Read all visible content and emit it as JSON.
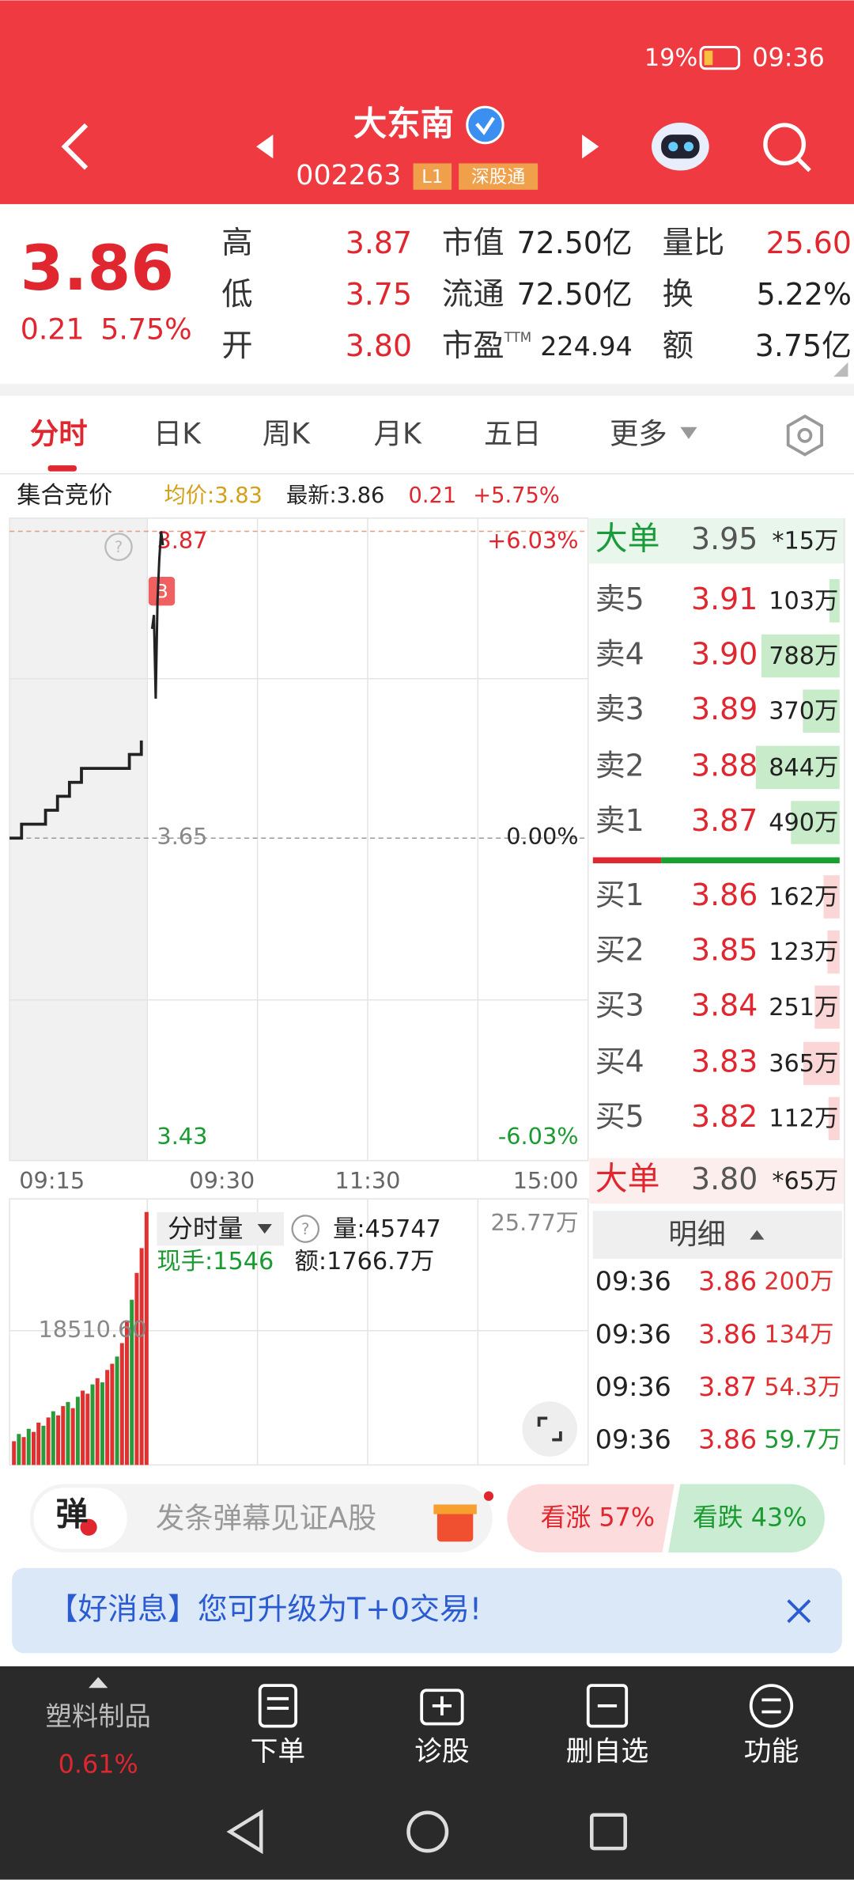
{
  "status_bar": {
    "battery": "19%",
    "time": "09:36"
  },
  "header": {
    "name": "大东南",
    "code": "002263",
    "badge_level": "L1",
    "badge_connect": "深股通"
  },
  "quote": {
    "price": "3.86",
    "change": "0.21",
    "change_pct": "5.75%",
    "col1": [
      {
        "label": "高",
        "value": "3.87"
      },
      {
        "label": "低",
        "value": "3.75"
      },
      {
        "label": "开",
        "value": "3.80"
      }
    ],
    "col2": [
      {
        "label": "市值",
        "value": "72.50亿"
      },
      {
        "label": "流通",
        "value": "72.50亿"
      },
      {
        "label": "市盈",
        "sup": "TTM",
        "value": "224.94"
      }
    ],
    "col3": [
      {
        "label": "量比",
        "value": "25.60"
      },
      {
        "label": "换",
        "value": "5.22%"
      },
      {
        "label": "额",
        "value": "3.75亿"
      }
    ]
  },
  "tabs": [
    "分时",
    "日K",
    "周K",
    "月K",
    "五日",
    "更多"
  ],
  "info_bar": {
    "label": "集合竞价",
    "avg": "均价:3.83",
    "latest": "最新:3.86",
    "change": "0.21",
    "change_pct": "+5.75%"
  },
  "price_chart": {
    "ylim": [
      3.43,
      3.87
    ],
    "yticks": [
      3.43,
      3.65,
      3.87
    ],
    "pct_labels": [
      "-6.03%",
      "0.00%",
      "+6.03%"
    ],
    "times": [
      "09:15",
      "09:30",
      "11:30",
      "15:00"
    ],
    "auction": [
      3.65,
      3.66,
      3.66,
      3.67,
      3.68,
      3.69,
      3.7,
      3.7,
      3.7,
      3.7,
      3.71,
      3.72
    ],
    "prices": [
      3.8,
      3.81,
      3.75,
      3.82,
      3.85,
      3.87,
      3.86
    ]
  },
  "volume_chart": {
    "title": "分时量",
    "volume": "量:45747",
    "hand": "现手:1546",
    "amount": "额:1766.7万",
    "max_label": "25.77万",
    "mid_label": "18510.60",
    "ylim": [
      0,
      257700
    ],
    "values": [
      23000,
      30000,
      27000,
      35000,
      32000,
      41000,
      38000,
      46000,
      52000,
      48000,
      57000,
      61000,
      55000,
      66000,
      72000,
      69000,
      78000,
      84000,
      80000,
      92000,
      98000,
      105000,
      118000,
      139000,
      160000,
      186000,
      210000,
      245000
    ],
    "colors": [
      "#e03030",
      "#2a9a3a",
      "#e03030",
      "#2a9a3a",
      "#e03030",
      "#e03030",
      "#2a9a3a",
      "#e03030",
      "#2a9a3a",
      "#e03030",
      "#e03030",
      "#2a9a3a",
      "#e03030",
      "#2a9a3a",
      "#e03030",
      "#e03030",
      "#2a9a3a",
      "#e03030",
      "#2a9a3a",
      "#e03030",
      "#e03030",
      "#2a9a3a",
      "#e03030",
      "#e03030",
      "#2a9a3a",
      "#e03030",
      "#e03030",
      "#e03030"
    ]
  },
  "order_book": {
    "big_sell": {
      "name": "大单",
      "price": "3.95",
      "volume": "*15万"
    },
    "asks": [
      {
        "name": "卖5",
        "price": "3.91",
        "volume": 103,
        "volume_label": "103万"
      },
      {
        "name": "卖4",
        "price": "3.90",
        "volume": 788,
        "volume_label": "788万"
      },
      {
        "name": "卖3",
        "price": "3.89",
        "volume": 370,
        "volume_label": "370万"
      },
      {
        "name": "卖2",
        "price": "3.88",
        "volume": 844,
        "volume_label": "844万"
      },
      {
        "name": "卖1",
        "price": "3.87",
        "volume": 490,
        "volume_label": "490万"
      }
    ],
    "bids": [
      {
        "name": "买1",
        "price": "3.86",
        "volume": 162,
        "volume_label": "162万"
      },
      {
        "name": "买2",
        "price": "3.85",
        "volume": 123,
        "volume_label": "123万"
      },
      {
        "name": "买3",
        "price": "3.84",
        "volume": 251,
        "volume_label": "251万"
      },
      {
        "name": "买4",
        "price": "3.83",
        "volume": 365,
        "volume_label": "365万"
      },
      {
        "name": "买5",
        "price": "3.82",
        "volume": 112,
        "volume_label": "112万"
      }
    ],
    "big_buy": {
      "name": "大单",
      "price": "3.80",
      "volume": "*65万"
    }
  },
  "ticks": {
    "title": "明细",
    "rows": [
      {
        "time": "09:36",
        "price": "3.86",
        "amount": "200万",
        "color": "#e03030"
      },
      {
        "time": "09:36",
        "price": "3.86",
        "amount": "134万",
        "color": "#e03030"
      },
      {
        "time": "09:36",
        "price": "3.87",
        "amount": "54.3万",
        "color": "#e03030"
      },
      {
        "time": "09:36",
        "price": "3.86",
        "amount": "59.7万",
        "color": "#1a9a30"
      }
    ]
  },
  "comment": {
    "icon": "弹",
    "placeholder": "发条弹幕见证A股",
    "up": "看涨 57%",
    "down": "看跌 43%"
  },
  "banner": "【好消息】您可升级为T+0交易!",
  "bottom_nav": {
    "sector": "塑料制品",
    "sector_pct": "0.61%",
    "items": [
      "下单",
      "诊股",
      "删自选",
      "功能"
    ]
  }
}
